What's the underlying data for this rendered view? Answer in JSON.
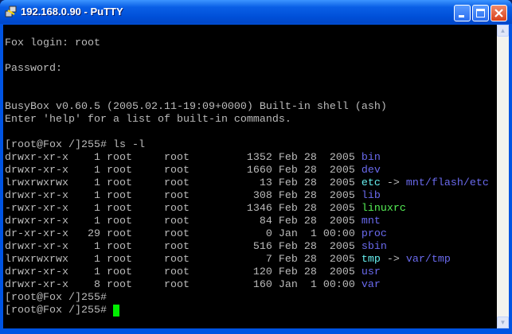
{
  "window": {
    "title": "192.168.0.90 - PuTTY",
    "icon": "putty-icon"
  },
  "colors": {
    "default": "#bbbbbb",
    "dir": "#6a6aee",
    "link": "#66eeee",
    "exec": "#55ee55",
    "cursor": "#00ee00"
  },
  "terminal": {
    "lines": [
      [],
      [
        {
          "t": "Fox login: root"
        }
      ],
      [],
      [
        {
          "t": "Password:"
        }
      ],
      [],
      [],
      [
        {
          "t": "BusyBox v0.60.5 (2005.02.11-19:09+0000) Built-in shell (ash)"
        }
      ],
      [
        {
          "t": "Enter 'help' for a list of built-in commands."
        }
      ],
      [],
      [
        {
          "t": "[root@Fox /]255# ls -l"
        }
      ],
      [
        {
          "t": "drwxr-xr-x    1 root     root         1352 Feb 28  2005 "
        },
        {
          "t": "bin",
          "c": "dir"
        }
      ],
      [
        {
          "t": "drwxr-xr-x    1 root     root         1660 Feb 28  2005 "
        },
        {
          "t": "dev",
          "c": "dir"
        }
      ],
      [
        {
          "t": "lrwxrwxrwx    1 root     root           13 Feb 28  2005 "
        },
        {
          "t": "etc",
          "c": "link"
        },
        {
          "t": " -> "
        },
        {
          "t": "mnt/flash/etc",
          "c": "dir"
        }
      ],
      [
        {
          "t": "drwxr-xr-x    1 root     root          308 Feb 28  2005 "
        },
        {
          "t": "lib",
          "c": "dir"
        }
      ],
      [
        {
          "t": "-rwxr-xr-x    1 root     root         1346 Feb 28  2005 "
        },
        {
          "t": "linuxrc",
          "c": "exec"
        }
      ],
      [
        {
          "t": "drwxr-xr-x    1 root     root           84 Feb 28  2005 "
        },
        {
          "t": "mnt",
          "c": "dir"
        }
      ],
      [
        {
          "t": "dr-xr-xr-x   29 root     root            0 Jan  1 00:00 "
        },
        {
          "t": "proc",
          "c": "dir"
        }
      ],
      [
        {
          "t": "drwxr-xr-x    1 root     root          516 Feb 28  2005 "
        },
        {
          "t": "sbin",
          "c": "dir"
        }
      ],
      [
        {
          "t": "lrwxrwxrwx    1 root     root            7 Feb 28  2005 "
        },
        {
          "t": "tmp",
          "c": "link"
        },
        {
          "t": " -> "
        },
        {
          "t": "var/tmp",
          "c": "dir"
        }
      ],
      [
        {
          "t": "drwxr-xr-x    1 root     root          120 Feb 28  2005 "
        },
        {
          "t": "usr",
          "c": "dir"
        }
      ],
      [
        {
          "t": "drwxr-xr-x    8 root     root          160 Jan  1 00:00 "
        },
        {
          "t": "var",
          "c": "dir"
        }
      ],
      [
        {
          "t": "[root@Fox /]255#"
        }
      ],
      [
        {
          "t": "[root@Fox /]255# "
        },
        {
          "cursor": true
        }
      ]
    ]
  }
}
